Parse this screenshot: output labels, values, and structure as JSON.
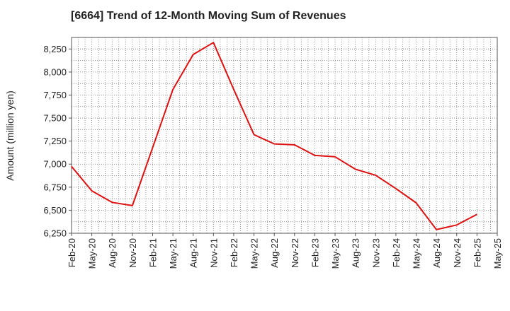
{
  "chart_data": {
    "type": "line",
    "title": "[6664]  Trend of 12-Month Moving Sum of Revenues",
    "xlabel": "",
    "ylabel": "Amount (million yen)",
    "ylim": [
      6250,
      8375
    ],
    "yticks": [
      6250,
      6500,
      6750,
      7000,
      7250,
      7500,
      7750,
      8000,
      8250
    ],
    "ytick_labels": [
      "6,250",
      "6,500",
      "6,750",
      "7,000",
      "7,250",
      "7,500",
      "7,750",
      "8,000",
      "8,250"
    ],
    "categories": [
      "Feb-20",
      "May-20",
      "Aug-20",
      "Nov-20",
      "Feb-21",
      "May-21",
      "Aug-21",
      "Nov-21",
      "Feb-22",
      "May-22",
      "Aug-22",
      "Nov-22",
      "Feb-23",
      "May-23",
      "Aug-23",
      "Nov-23",
      "Feb-24",
      "May-24",
      "Aug-24",
      "Nov-24",
      "Feb-25",
      "May-25"
    ],
    "grid": true,
    "series": [
      {
        "name": "",
        "color": "#dd1111",
        "values": [
          6975,
          6710,
          6585,
          6550,
          7180,
          7810,
          8190,
          8320,
          7810,
          7320,
          7220,
          7210,
          7095,
          7080,
          6945,
          6880,
          6735,
          6580,
          6290,
          6340,
          6455,
          null
        ]
      }
    ]
  }
}
